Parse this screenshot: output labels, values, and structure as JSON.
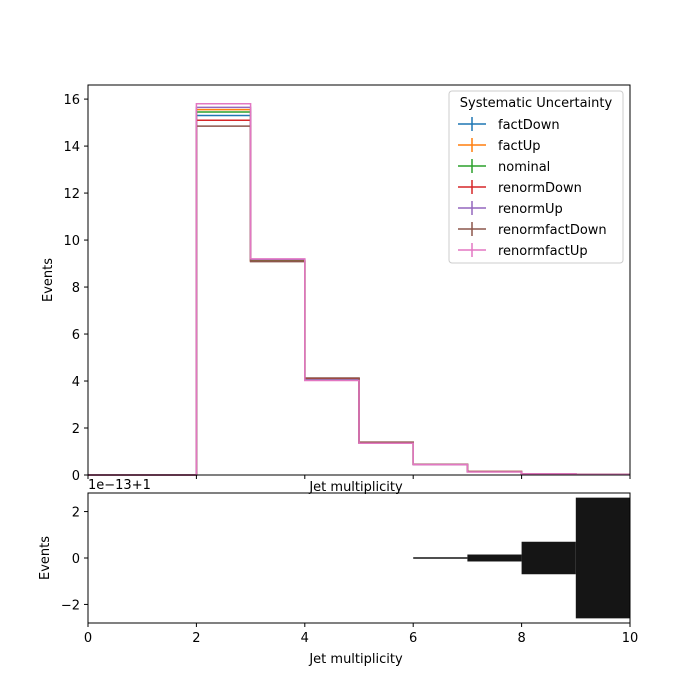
{
  "chart_data": [
    {
      "type": "histogram",
      "xlabel": "Jet multiplicity",
      "ylabel": "Events",
      "xlim": [
        0,
        10
      ],
      "ylim": [
        0,
        16.6
      ],
      "x_ticks": [
        0,
        2,
        4,
        6,
        8,
        10
      ],
      "y_ticks": [
        0,
        2,
        4,
        6,
        8,
        10,
        12,
        14,
        16
      ],
      "show_x_tick_labels": false,
      "legend": {
        "title": "Systematic Uncertainty",
        "placement": "top-right"
      },
      "bin_edges": [
        0,
        1,
        2,
        3,
        4,
        5,
        6,
        7,
        8,
        9,
        10
      ],
      "series": [
        {
          "name": "factDown",
          "color": "#1f77b4",
          "values": [
            0,
            0,
            15.3,
            9.15,
            4.1,
            1.38,
            0.45,
            0.14,
            0.05,
            0.02
          ]
        },
        {
          "name": "factUp",
          "color": "#ff7f0e",
          "values": [
            0,
            0,
            15.55,
            9.12,
            4.08,
            1.37,
            0.45,
            0.14,
            0.05,
            0.02
          ]
        },
        {
          "name": "nominal",
          "color": "#2ca02c",
          "values": [
            0,
            0,
            15.45,
            9.13,
            4.09,
            1.37,
            0.45,
            0.14,
            0.05,
            0.02
          ]
        },
        {
          "name": "renormDown",
          "color": "#d62728",
          "values": [
            0,
            0,
            15.1,
            9.1,
            4.12,
            1.39,
            0.46,
            0.15,
            0.05,
            0.02
          ]
        },
        {
          "name": "renormUp",
          "color": "#9467bd",
          "values": [
            0,
            0,
            15.65,
            9.18,
            4.05,
            1.36,
            0.44,
            0.14,
            0.05,
            0.02
          ]
        },
        {
          "name": "renormfactDown",
          "color": "#8c564b",
          "values": [
            0,
            0,
            14.85,
            9.08,
            4.13,
            1.4,
            0.46,
            0.15,
            0.05,
            0.02
          ]
        },
        {
          "name": "renormfactUp",
          "color": "#e377c2",
          "values": [
            0,
            0,
            15.8,
            9.2,
            4.02,
            1.35,
            0.44,
            0.13,
            0.05,
            0.02
          ]
        }
      ]
    },
    {
      "type": "bar",
      "xlabel": "Jet multiplicity",
      "ylabel": "Events",
      "offset_text": "1e−13+1",
      "xlim": [
        0,
        10
      ],
      "ylim": [
        -2.8,
        2.8
      ],
      "x_ticks": [
        0,
        2,
        4,
        6,
        8,
        10
      ],
      "y_ticks": [
        -2,
        0,
        2
      ],
      "y_tick_labels": [
        "−2",
        "0",
        "2"
      ],
      "bin_edges": [
        0,
        1,
        2,
        3,
        4,
        5,
        6,
        7,
        8,
        9,
        10
      ],
      "band_color": "#151515",
      "band_halfwidths": [
        0,
        0,
        0,
        0,
        0,
        0,
        0.03,
        0.15,
        0.7,
        2.6
      ]
    }
  ]
}
